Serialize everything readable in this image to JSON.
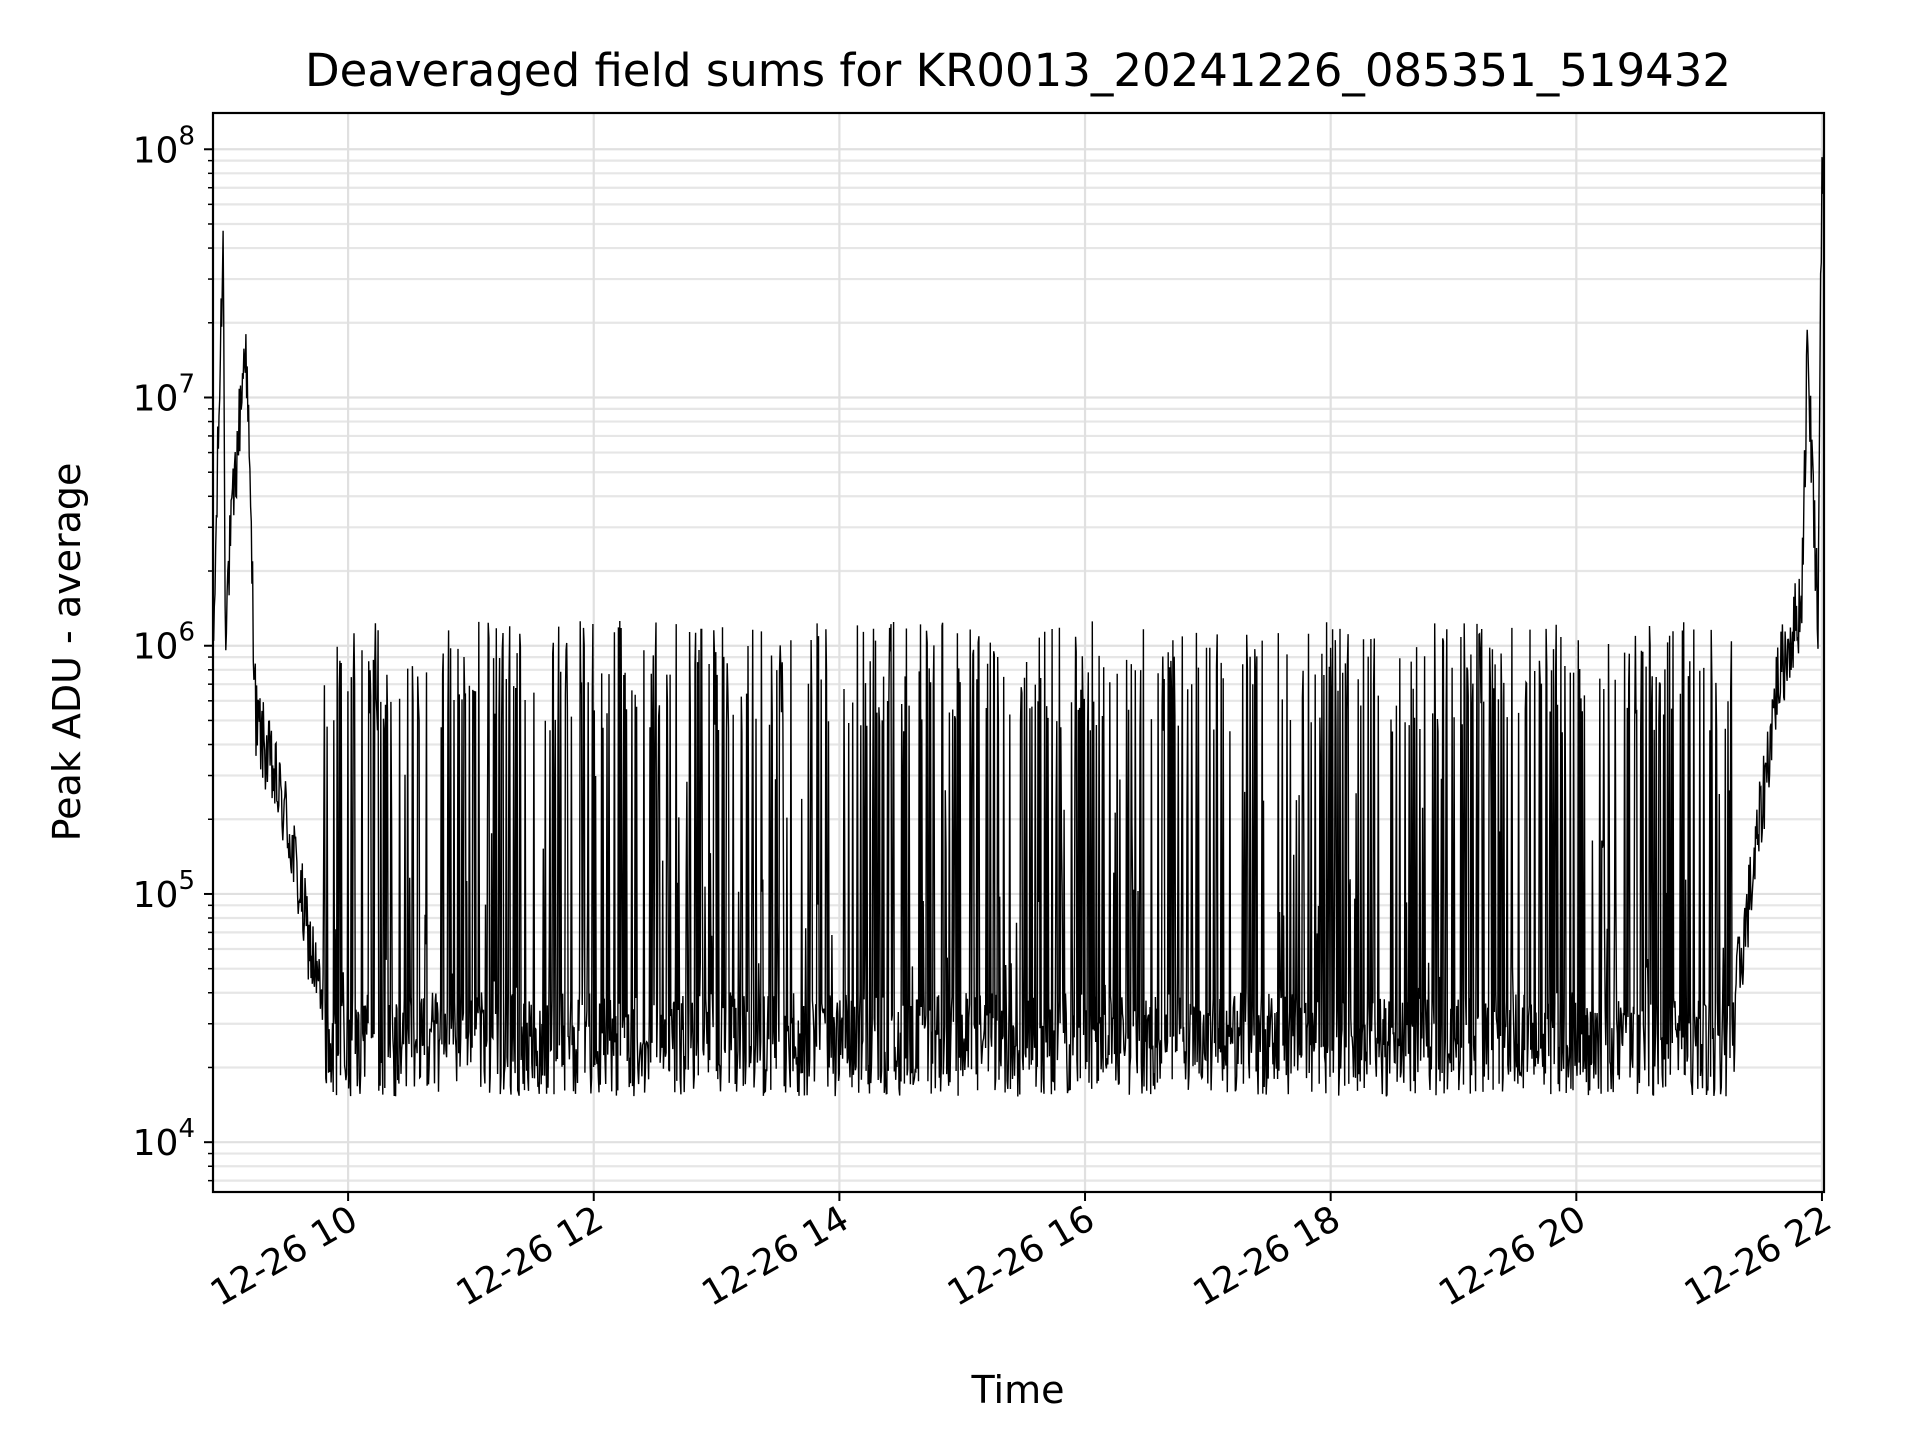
{
  "chart_data": {
    "type": "line",
    "title": "Deaveraged field sums for KR0013_20241226_085351_519432",
    "xlabel": "Time",
    "ylabel": "Peak ADU - average",
    "x_scale": "time",
    "y_scale": "log",
    "xlim": [
      "2024-12-26 08:54",
      "2024-12-26 22:01"
    ],
    "ylim": [
      6300,
      140000000
    ],
    "x_ticks": [
      {
        "value": "2024-12-26 10:00",
        "label": "12-26 10"
      },
      {
        "value": "2024-12-26 12:00",
        "label": "12-26 12"
      },
      {
        "value": "2024-12-26 14:00",
        "label": "12-26 14"
      },
      {
        "value": "2024-12-26 16:00",
        "label": "12-26 16"
      },
      {
        "value": "2024-12-26 18:00",
        "label": "12-26 18"
      },
      {
        "value": "2024-12-26 20:00",
        "label": "12-26 20"
      },
      {
        "value": "2024-12-26 22:00",
        "label": "12-26 22"
      }
    ],
    "y_ticks": [
      {
        "value": 10000,
        "base": "10",
        "exp": "4"
      },
      {
        "value": 100000,
        "base": "10",
        "exp": "5"
      },
      {
        "value": 1000000,
        "base": "10",
        "exp": "6"
      },
      {
        "value": 10000000,
        "base": "10",
        "exp": "7"
      },
      {
        "value": 100000000,
        "base": "10",
        "exp": "8"
      }
    ],
    "grid": true,
    "legend": "none",
    "line_color": "#000000",
    "series": [
      {
        "values": [
          {
            "x": "2024-12-26 08:54",
            "y": 800000
          },
          {
            "x": "2024-12-26 08:59",
            "y": 47000000
          },
          {
            "x": "2024-12-26 09:00",
            "y": 1300000
          },
          {
            "x": "2024-12-26 09:10",
            "y": 18000000
          },
          {
            "x": "2024-12-26 09:15",
            "y": 500000
          },
          {
            "x": "2024-12-26 09:30",
            "y": 200000
          },
          {
            "x": "2024-12-26 09:40",
            "y": 70000
          },
          {
            "x": "2024-12-26 09:48",
            "y": 33000
          },
          {
            "x": "2024-12-26 10:00",
            "y": 30000
          },
          {
            "x": "2024-12-26 11:00",
            "y": 27000
          },
          {
            "x": "2024-12-26 12:00",
            "y": 25000
          },
          {
            "x": "2024-12-26 13:00",
            "y": 25000
          },
          {
            "x": "2024-12-26 14:00",
            "y": 24000
          },
          {
            "x": "2024-12-26 15:00",
            "y": 24000
          },
          {
            "x": "2024-12-26 16:00",
            "y": 25000
          },
          {
            "x": "2024-12-26 17:00",
            "y": 25000
          },
          {
            "x": "2024-12-26 18:00",
            "y": 24000
          },
          {
            "x": "2024-12-26 19:00",
            "y": 24000
          },
          {
            "x": "2024-12-26 20:00",
            "y": 26000
          },
          {
            "x": "2024-12-26 20:30",
            "y": 26000
          },
          {
            "x": "2024-12-26 21:00",
            "y": 27000
          },
          {
            "x": "2024-12-26 21:18",
            "y": 40000
          },
          {
            "x": "2024-12-26 21:28",
            "y": 150000
          },
          {
            "x": "2024-12-26 21:38",
            "y": 700000
          },
          {
            "x": "2024-12-26 21:50",
            "y": 1500000
          },
          {
            "x": "2024-12-26 21:53",
            "y": 16000000
          },
          {
            "x": "2024-12-26 21:58",
            "y": 1300000
          },
          {
            "x": "2024-12-26 22:00",
            "y": 93000000
          }
        ]
      }
    ]
  }
}
